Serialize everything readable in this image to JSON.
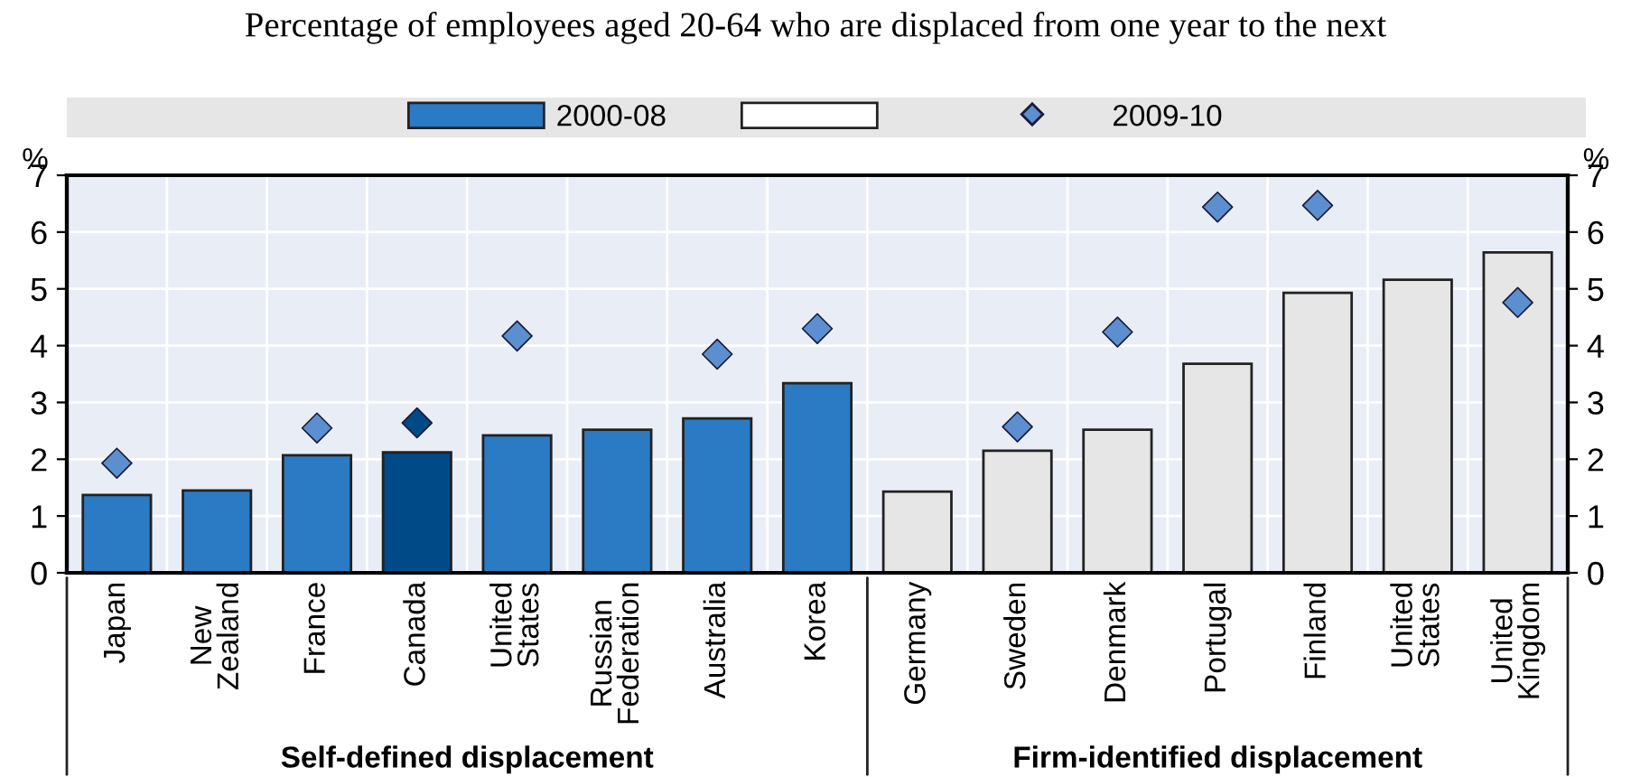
{
  "chart_data": {
    "type": "bar",
    "title": "Percentage of employees aged 20-64 who are displaced from one year to the next",
    "categories": [
      "Japan",
      "New\nZealand",
      "France",
      "Canada",
      "United\nStates",
      "Russian\nFederation",
      "Australia",
      "Korea",
      "Germany",
      "Sweden",
      "Denmark",
      "Portugal",
      "Finland",
      "United\nStates",
      "United\nKingdom"
    ],
    "series": [
      {
        "name": "2000-08",
        "colors": [
          "#2a7bc4",
          "#2a7bc4",
          "#2a7bc4",
          "#004b87",
          "#2a7bc4",
          "#2a7bc4",
          "#2a7bc4",
          "#2a7bc4",
          "#e6e6e6",
          "#e6e6e6",
          "#e6e6e6",
          "#e6e6e6",
          "#e6e6e6",
          "#e6e6e6",
          "#e6e6e6"
        ],
        "values": [
          1.37,
          1.45,
          2.07,
          2.12,
          2.42,
          2.52,
          2.72,
          3.34,
          1.43,
          2.15,
          2.52,
          3.68,
          4.93,
          5.16,
          5.64
        ]
      },
      {
        "name": "2009-10",
        "type": "scatter",
        "marker": "diamond",
        "color": "#5b8fd0",
        "colors": [
          "#5b8fd0",
          "#5b8fd0",
          "#5b8fd0",
          "#004b87",
          "#5b8fd0",
          "#5b8fd0",
          "#5b8fd0",
          "#5b8fd0",
          "#5b8fd0",
          "#5b8fd0",
          "#5b8fd0",
          "#5b8fd0",
          "#5b8fd0",
          "#5b8fd0",
          "#5b8fd0"
        ],
        "values": [
          1.93,
          null,
          2.55,
          2.64,
          4.17,
          null,
          3.85,
          4.3,
          null,
          2.57,
          4.24,
          6.44,
          6.47,
          null,
          4.76
        ]
      }
    ],
    "ylabel": "%",
    "y2label": "%",
    "ylim": [
      0,
      7
    ],
    "yticks": [
      0,
      1,
      2,
      3,
      4,
      5,
      6,
      7
    ],
    "y2lim": [
      0,
      7
    ],
    "y2ticks": [
      0,
      1,
      2,
      3,
      4,
      5,
      6,
      7
    ],
    "grid": true,
    "legend": "top",
    "annotations": [
      "Self-defined displacement",
      "Firm-identified displacement"
    ]
  }
}
